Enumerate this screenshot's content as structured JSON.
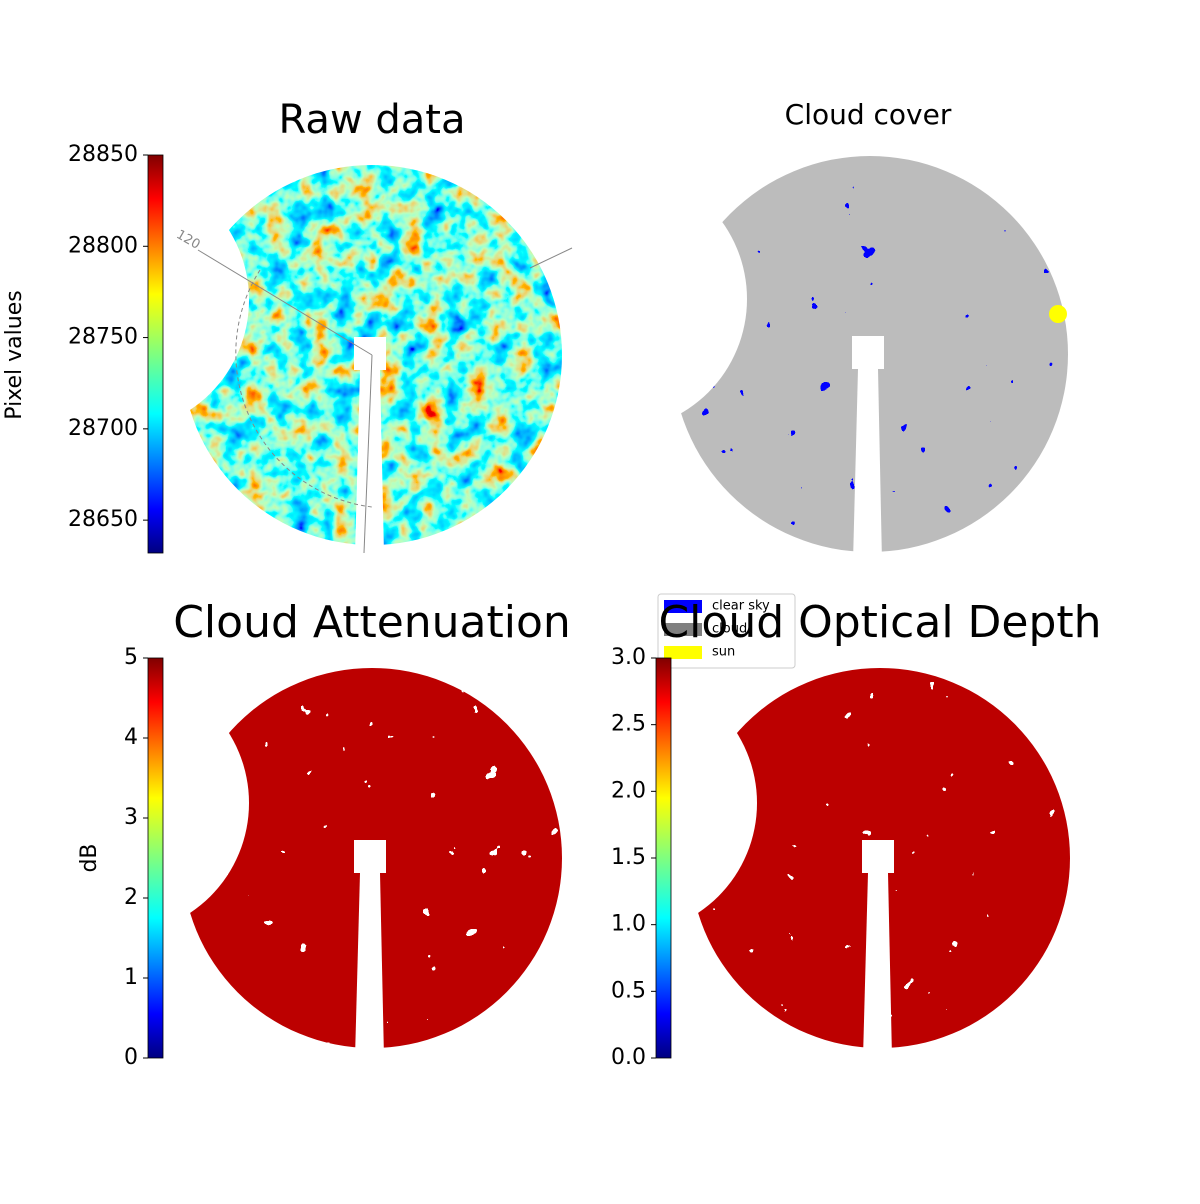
{
  "chart_data": [
    {
      "type": "image",
      "title": "Raw data",
      "colorbar_label": "Pixel values",
      "colormap": "jet",
      "clim": [
        28632,
        28850
      ],
      "cticks": [
        28650,
        28700,
        28750,
        28800,
        28850
      ],
      "annotations": [
        "120"
      ]
    },
    {
      "type": "image",
      "title": "Cloud cover",
      "legend": [
        {
          "name": "clear sky",
          "color": "#0000ff"
        },
        {
          "name": "cloud",
          "color": "#808080"
        },
        {
          "name": "sun",
          "color": "#ffff00"
        }
      ],
      "legend_position": "lower left"
    },
    {
      "type": "image",
      "title": "Cloud Attenuation",
      "colorbar_label": "dB",
      "colormap": "jet",
      "clim": [
        0,
        5
      ],
      "cticks": [
        0,
        1,
        2,
        3,
        4,
        5
      ]
    },
    {
      "type": "image",
      "title": "Cloud Optical Depth",
      "colormap": "jet",
      "clim": [
        0,
        3
      ],
      "cticks": [
        {
          "value": 0,
          "label": "0.0"
        },
        0.5,
        {
          "value": 1,
          "label": "1.0"
        },
        1.5,
        {
          "value": 2,
          "label": "2.0"
        },
        2.5,
        {
          "value": 3,
          "label": "3.0"
        }
      ]
    }
  ]
}
